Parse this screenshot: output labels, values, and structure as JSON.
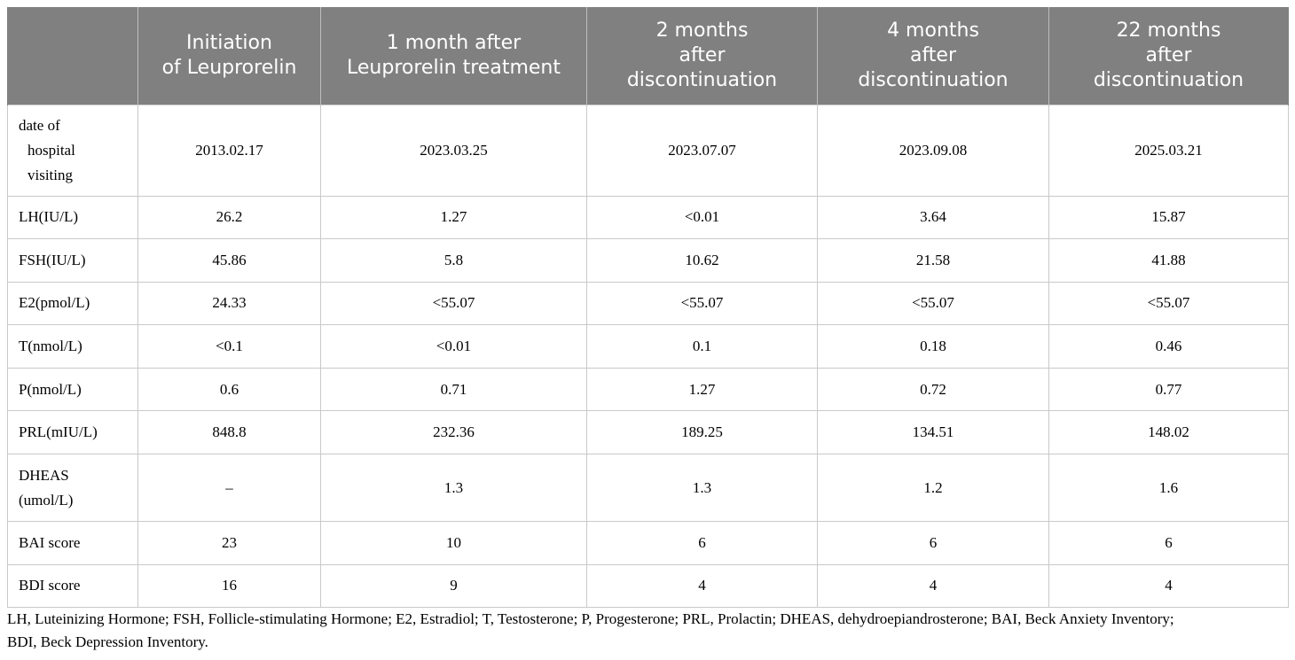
{
  "table": {
    "headers": [
      "",
      "Initiation of Leuprorelin",
      "1 month after Leuprorelin treatment",
      "2 months after discontinuation",
      "4 months after discontinuation",
      "22 months after discontinuation"
    ],
    "header_lines": [
      [],
      [
        "Initiation",
        "of Leuprorelin"
      ],
      [
        "1 month after",
        "Leuprorelin treatment"
      ],
      [
        "2 months",
        "after",
        "discontinuation"
      ],
      [
        "4 months",
        "after",
        "discontinuation"
      ],
      [
        "22 months",
        "after",
        "discontinuation"
      ]
    ],
    "rows": [
      {
        "label_lines": [
          "date of",
          "hospital",
          "visiting"
        ],
        "values": [
          "2013.02.17",
          "2023.03.25",
          "2023.07.07",
          "2023.09.08",
          "2025.03.21"
        ]
      },
      {
        "label": "LH(IU/L)",
        "values": [
          "26.2",
          "1.27",
          "<0.01",
          "3.64",
          "15.87"
        ]
      },
      {
        "label": "FSH(IU/L)",
        "values": [
          "45.86",
          "5.8",
          "10.62",
          "21.58",
          "41.88"
        ]
      },
      {
        "label": "E2(pmol/L)",
        "values": [
          "24.33",
          "<55.07",
          "<55.07",
          "<55.07",
          "<55.07"
        ]
      },
      {
        "label": "T(nmol/L)",
        "values": [
          "<0.1",
          "<0.01",
          "0.1",
          "0.18",
          "0.46"
        ]
      },
      {
        "label": "P(nmol/L)",
        "values": [
          "0.6",
          "0.71",
          "1.27",
          "0.72",
          "0.77"
        ]
      },
      {
        "label": "PRL(mIU/L)",
        "values": [
          "848.8",
          "232.36",
          "189.25",
          "134.51",
          "148.02"
        ]
      },
      {
        "label_lines": [
          "DHEAS",
          "(umol/L)"
        ],
        "values": [
          "–",
          "1.3",
          "1.3",
          "1.2",
          "1.6"
        ]
      },
      {
        "label": "BAI score",
        "values": [
          "23",
          "10",
          "6",
          "6",
          "6"
        ]
      },
      {
        "label": "BDI score",
        "values": [
          "16",
          "9",
          "4",
          "4",
          "4"
        ]
      }
    ]
  },
  "caption": {
    "line1": "LH, Luteinizing Hormone; FSH, Follicle-stimulating Hormone; E2, Estradiol; T, Testosterone; P, Progesterone; PRL, Prolactin; DHEAS, dehydroepiandrosterone; BAI, Beck Anxiety Inventory;",
    "line2": "BDI, Beck Depression Inventory."
  }
}
